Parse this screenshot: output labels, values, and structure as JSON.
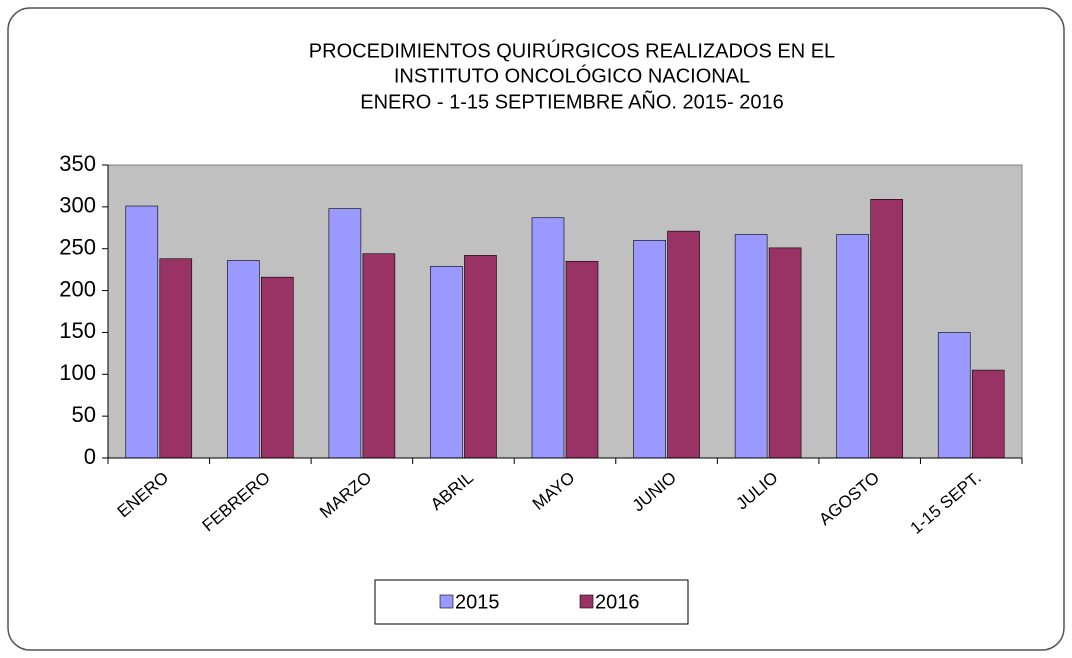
{
  "chart_data": {
    "type": "bar",
    "title": [
      "PROCEDIMIENTOS QUIRÚRGICOS REALIZADOS EN EL",
      "INSTITUTO ONCOLÓGICO NACIONAL",
      "ENERO - 1-15 SEPTIEMBRE   AÑO. 2015- 2016"
    ],
    "categories": [
      "ENERO",
      "FEBRERO",
      "MARZO",
      "ABRIL",
      "MAYO",
      "JUNIO",
      "JULIO",
      "AGOSTO",
      "1-15 SEPT."
    ],
    "series": [
      {
        "name": "2015",
        "color": "#9999ff",
        "values": [
          301,
          236,
          298,
          229,
          287,
          260,
          267,
          267,
          150
        ]
      },
      {
        "name": "2016",
        "color": "#993366",
        "values": [
          238,
          216,
          244,
          242,
          235,
          271,
          251,
          309,
          105
        ]
      }
    ],
    "ylim": [
      0,
      350
    ],
    "yticks": [
      0,
      50,
      100,
      150,
      200,
      250,
      300,
      350
    ],
    "plot_background": "#c0c0c0",
    "legend": "bottom"
  }
}
